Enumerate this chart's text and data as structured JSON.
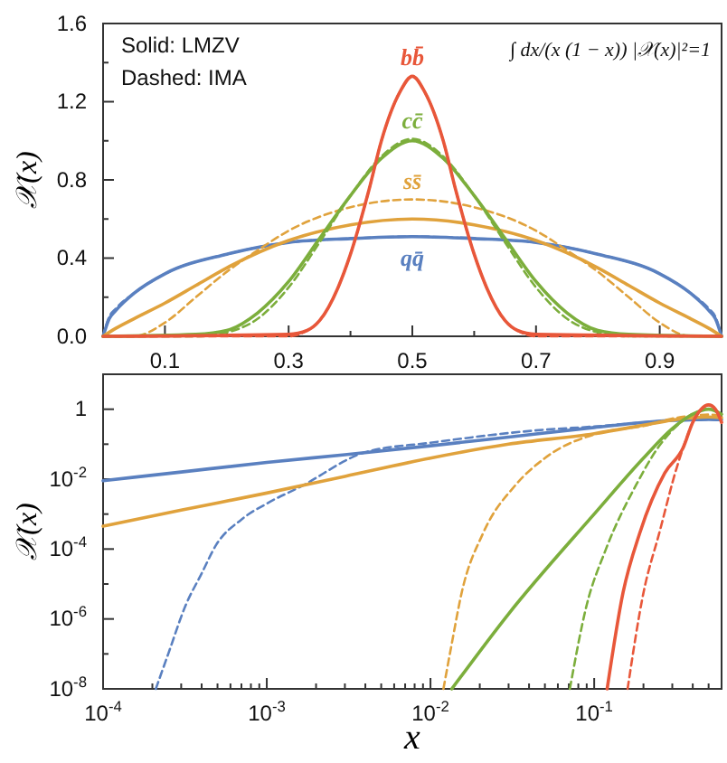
{
  "chart_data": [
    {
      "type": "line",
      "ylabel": "𝒳(x)",
      "annotations": [
        "Solid: LMZV",
        "Dashed: IMA",
        "∫ dx/(x (1 − x)) |𝒳(x)|²=1"
      ],
      "xlim": [
        0,
        1
      ],
      "ylim": [
        0,
        1.6
      ],
      "xticks": [
        0.1,
        {
          "value": 0.2,
          "label": null
        },
        0.3,
        {
          "value": 0.4,
          "label": null
        },
        0.5,
        {
          "value": 0.6,
          "label": null
        },
        0.7,
        {
          "value": 0.8,
          "label": null
        },
        0.9
      ],
      "yticks": [
        {
          "value": 0,
          "label": "0.0"
        },
        {
          "value": 0.2,
          "label": null
        },
        0.4,
        {
          "value": 0.6,
          "label": null
        },
        0.8,
        {
          "value": 1,
          "label": null
        },
        1.2,
        {
          "value": 1.4,
          "label": null
        },
        1.6
      ],
      "series": [
        {
          "name": "qq̄",
          "color": "#5a80c0",
          "line_style": "solid",
          "x": [
            0,
            0.01,
            0.02,
            0.05,
            0.1,
            0.2,
            0.3,
            0.4,
            0.5,
            0.6,
            0.7,
            0.8,
            0.9,
            0.95,
            0.98,
            0.99,
            1
          ],
          "values": [
            0,
            0.09,
            0.13,
            0.22,
            0.32,
            0.42,
            0.48,
            0.5,
            0.51,
            0.5,
            0.48,
            0.42,
            0.32,
            0.22,
            0.13,
            0.09,
            0
          ]
        },
        {
          "color": "#5a80c0",
          "line_style": "dashed",
          "x": [
            0,
            0.01,
            0.02,
            0.05,
            0.1,
            0.2,
            0.3,
            0.4,
            0.5,
            0.6,
            0.7,
            0.8,
            0.9,
            0.95,
            0.98,
            0.99,
            1
          ],
          "values": [
            0,
            0.1,
            0.14,
            0.22,
            0.32,
            0.42,
            0.48,
            0.5,
            0.51,
            0.5,
            0.48,
            0.42,
            0.32,
            0.22,
            0.14,
            0.1,
            0
          ]
        },
        {
          "name": "ss̄",
          "color": "#e0a23c",
          "line_style": "solid",
          "x": [
            0,
            0.02,
            0.05,
            0.1,
            0.15,
            0.2,
            0.3,
            0.4,
            0.5,
            0.6,
            0.7,
            0.8,
            0.85,
            0.9,
            0.95,
            0.98,
            1
          ],
          "values": [
            0,
            0.04,
            0.09,
            0.17,
            0.26,
            0.35,
            0.49,
            0.57,
            0.6,
            0.57,
            0.49,
            0.35,
            0.26,
            0.17,
            0.09,
            0.04,
            0
          ]
        },
        {
          "color": "#e0a23c",
          "line_style": "dashed",
          "x": [
            0,
            0.05,
            0.1,
            0.15,
            0.2,
            0.25,
            0.3,
            0.4,
            0.5,
            0.6,
            0.7,
            0.75,
            0.8,
            0.85,
            0.9,
            0.95,
            1
          ],
          "values": [
            0,
            0,
            0.07,
            0.2,
            0.33,
            0.44,
            0.54,
            0.66,
            0.7,
            0.66,
            0.54,
            0.44,
            0.33,
            0.2,
            0.07,
            0,
            0
          ]
        },
        {
          "name": "cc̄",
          "color": "#7cae3c",
          "line_style": "solid",
          "x": [
            0,
            0.15,
            0.2,
            0.25,
            0.3,
            0.35,
            0.4,
            0.45,
            0.5,
            0.55,
            0.6,
            0.65,
            0.7,
            0.75,
            0.8,
            0.85,
            1
          ],
          "values": [
            0,
            0.01,
            0.03,
            0.12,
            0.28,
            0.5,
            0.72,
            0.91,
            1,
            0.91,
            0.72,
            0.5,
            0.28,
            0.12,
            0.03,
            0.01,
            0
          ]
        },
        {
          "color": "#7cae3c",
          "line_style": "dashed",
          "x": [
            0,
            0.15,
            0.2,
            0.25,
            0.3,
            0.35,
            0.4,
            0.45,
            0.5,
            0.55,
            0.6,
            0.65,
            0.7,
            0.75,
            0.8,
            0.85,
            1
          ],
          "values": [
            0,
            0,
            0.02,
            0.09,
            0.25,
            0.48,
            0.72,
            0.92,
            1.01,
            0.92,
            0.72,
            0.48,
            0.25,
            0.09,
            0.02,
            0,
            0
          ]
        },
        {
          "name": "bb̄",
          "color": "#e8573a",
          "line_style": "solid",
          "x": [
            0,
            0.3,
            0.33,
            0.35,
            0.38,
            0.4,
            0.43,
            0.45,
            0.48,
            0.5,
            0.52,
            0.55,
            0.57,
            0.6,
            0.62,
            0.65,
            0.67,
            0.7,
            1
          ],
          "values": [
            0,
            0.01,
            0.03,
            0.08,
            0.25,
            0.42,
            0.75,
            1,
            1.25,
            1.33,
            1.25,
            1,
            0.75,
            0.42,
            0.25,
            0.08,
            0.03,
            0.01,
            0
          ]
        },
        {
          "color": "#e8573a",
          "line_style": "dashed",
          "x": [
            0,
            0.3,
            0.33,
            0.35,
            0.38,
            0.4,
            0.43,
            0.45,
            0.48,
            0.5,
            0.52,
            0.55,
            0.57,
            0.6,
            0.62,
            0.65,
            0.67,
            0.7,
            1
          ],
          "values": [
            0,
            0,
            0.03,
            0.08,
            0.25,
            0.42,
            0.75,
            1,
            1.25,
            1.33,
            1.25,
            1,
            0.75,
            0.42,
            0.25,
            0.08,
            0.03,
            0,
            0
          ]
        }
      ]
    },
    {
      "type": "line",
      "xlabel": "x",
      "ylabel": "𝒳(x)",
      "log": "xy",
      "xlim": [
        0.0001,
        0.6
      ],
      "ylim": [
        1e-08,
        10
      ],
      "xticks": [
        {
          "value": 0.0001,
          "label": "10$^{-4}$"
        },
        {
          "value": 0.0002,
          "label": null
        },
        {
          "value": 0.0003,
          "label": null
        },
        {
          "value": 0.0004,
          "label": null
        },
        {
          "value": 0.0005,
          "label": null
        },
        {
          "value": 0.0006,
          "label": null
        },
        {
          "value": 0.0007,
          "label": null
        },
        {
          "value": 0.0008,
          "label": null
        },
        {
          "value": 0.0009,
          "label": null
        },
        {
          "value": 0.001,
          "label": "10$^{-3}$"
        },
        {
          "value": 0.002,
          "label": null
        },
        {
          "value": 0.003,
          "label": null
        },
        {
          "value": 0.004,
          "label": null
        },
        {
          "value": 0.005,
          "label": null
        },
        {
          "value": 0.006,
          "label": null
        },
        {
          "value": 0.007,
          "label": null
        },
        {
          "value": 0.008,
          "label": null
        },
        {
          "value": 0.009,
          "label": null
        },
        {
          "value": 0.01,
          "label": "10$^{-2}$"
        },
        {
          "value": 0.02,
          "label": null
        },
        {
          "value": 0.03,
          "label": null
        },
        {
          "value": 0.04,
          "label": null
        },
        {
          "value": 0.05,
          "label": null
        },
        {
          "value": 0.06,
          "label": null
        },
        {
          "value": 0.07,
          "label": null
        },
        {
          "value": 0.08,
          "label": null
        },
        {
          "value": 0.09,
          "label": null
        },
        {
          "value": 0.1,
          "label": "10$^{-1}$"
        },
        {
          "value": 0.2,
          "label": null
        },
        {
          "value": 0.3,
          "label": null
        },
        {
          "value": 0.4,
          "label": null
        },
        {
          "value": 0.5,
          "label": null
        }
      ],
      "yticks": [
        {
          "value": 1e-08,
          "label": "10$^{-8}$"
        },
        {
          "value": 1e-07,
          "label": null
        },
        {
          "value": 1e-06,
          "label": "10$^{-6}$"
        },
        {
          "value": 1e-05,
          "label": null
        },
        {
          "value": 0.0001,
          "label": "10$^{-4}$"
        },
        {
          "value": 0.001,
          "label": null
        },
        {
          "value": 0.01,
          "label": "10$^{-2}$"
        },
        {
          "value": 0.1,
          "label": null
        },
        1
      ],
      "series": [
        {
          "color": "#5a80c0",
          "line_style": "solid",
          "x": [
            0.0001,
            0.0003,
            0.001,
            0.003,
            0.01,
            0.03,
            0.1,
            0.2,
            0.3,
            0.4,
            0.5,
            0.6
          ],
          "values": [
            0.009,
            0.016,
            0.03,
            0.05,
            0.09,
            0.16,
            0.3,
            0.42,
            0.48,
            0.5,
            0.51,
            0.5
          ]
        },
        {
          "color": "#5a80c0",
          "line_style": "dashed",
          "x": [
            0.00021,
            0.00025,
            0.00032,
            0.0004,
            0.00049,
            0.0007,
            0.001,
            0.0016,
            0.004,
            0.01,
            0.05,
            0.1,
            0.2,
            0.3,
            0.4,
            0.5,
            0.6
          ],
          "values": [
            1e-08,
            1e-07,
            2.5e-06,
            2e-05,
            0.00013,
            0.0007,
            0.002,
            0.006,
            0.059,
            0.11,
            0.26,
            0.32,
            0.42,
            0.48,
            0.5,
            0.51,
            0.5
          ]
        },
        {
          "color": "#e0a23c",
          "line_style": "solid",
          "x": [
            0.0001,
            0.0003,
            0.001,
            0.003,
            0.01,
            0.03,
            0.1,
            0.2,
            0.3,
            0.4,
            0.5,
            0.6
          ],
          "values": [
            0.00045,
            0.0013,
            0.004,
            0.012,
            0.04,
            0.1,
            0.2,
            0.35,
            0.49,
            0.57,
            0.6,
            0.57
          ]
        },
        {
          "color": "#e0a23c",
          "line_style": "dashed",
          "x": [
            0.012,
            0.0135,
            0.0155,
            0.021,
            0.033,
            0.05,
            0.117,
            0.2,
            0.3,
            0.4,
            0.5,
            0.6
          ],
          "values": [
            1e-08,
            2e-07,
            5.6e-06,
            0.00029,
            0.0067,
            0.04,
            0.23,
            0.33,
            0.54,
            0.66,
            0.7,
            0.66
          ]
        },
        {
          "color": "#7cae3c",
          "line_style": "solid",
          "x": [
            0.0135,
            0.03,
            0.1,
            0.2,
            0.3,
            0.4,
            0.5,
            0.6
          ],
          "values": [
            1e-08,
            1.4e-06,
            0.001,
            0.04,
            0.28,
            0.72,
            1,
            0.72
          ]
        },
        {
          "color": "#7cae3c",
          "line_style": "dashed",
          "x": [
            0.071,
            0.09,
            0.117,
            0.18,
            0.25,
            0.3,
            0.4,
            0.5,
            0.6
          ],
          "values": [
            1e-08,
            2.5e-06,
            9e-05,
            0.0067,
            0.09,
            0.25,
            0.72,
            1.01,
            0.72
          ]
        },
        {
          "color": "#e8573a",
          "line_style": "solid",
          "x": [
            0.12,
            0.15,
            0.19,
            0.27,
            0.35,
            0.4,
            0.45,
            0.5,
            0.55,
            0.6
          ],
          "values": [
            1e-08,
            5.6e-06,
            0.00029,
            0.015,
            0.08,
            0.42,
            1,
            1.33,
            1,
            0.42
          ]
        },
        {
          "color": "#e8573a",
          "line_style": "dashed",
          "x": [
            0.16,
            0.2,
            0.25,
            0.32,
            0.35,
            0.4,
            0.45,
            0.5,
            0.55,
            0.6
          ],
          "values": [
            1e-08,
            5.6e-06,
            0.00029,
            0.022,
            0.08,
            0.42,
            1,
            1.33,
            1,
            0.42
          ]
        }
      ]
    }
  ]
}
